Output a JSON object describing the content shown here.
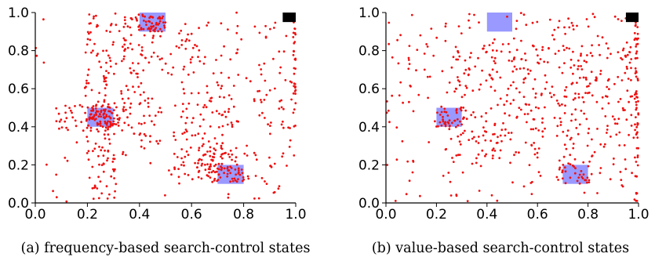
{
  "chart_data": [
    {
      "type": "scatter",
      "caption": "(a) frequency-based search-control states",
      "xlim": [
        0,
        1
      ],
      "ylim": [
        0,
        1
      ],
      "x_ticks": [
        "0.0",
        "0.2",
        "0.4",
        "0.6",
        "0.8",
        "1.0"
      ],
      "y_ticks": [
        "0.0",
        "0.2",
        "0.4",
        "0.6",
        "0.8",
        "1.0"
      ],
      "point_color": "#ee1111",
      "regions": [
        {
          "x": [
            0.4,
            0.5
          ],
          "y": [
            0.9,
            1.0
          ],
          "color": "#7f7fff"
        },
        {
          "x": [
            0.2,
            0.3
          ],
          "y": [
            0.4,
            0.5
          ],
          "color": "#7f7fff"
        },
        {
          "x": [
            0.7,
            0.8
          ],
          "y": [
            0.1,
            0.2
          ],
          "color": "#7f7fff"
        }
      ],
      "goal": {
        "x": [
          0.95,
          1.0
        ],
        "y": [
          0.95,
          1.0
        ],
        "color": "#000000"
      },
      "clusters": [
        {
          "n": 140,
          "cx": [
            0.19,
            0.31
          ],
          "cy": [
            0.02,
            1.0
          ]
        },
        {
          "n": 120,
          "cx": [
            0.33,
            0.49
          ],
          "cy": [
            0.25,
            0.98
          ]
        },
        {
          "n": 70,
          "cx": [
            0.08,
            0.34
          ],
          "cy": [
            0.38,
            0.52
          ]
        },
        {
          "n": 35,
          "cx": [
            0.21,
            0.29
          ],
          "cy": [
            0.41,
            0.49
          ]
        },
        {
          "n": 40,
          "cx": [
            0.39,
            0.5
          ],
          "cy": [
            0.9,
            0.99
          ]
        },
        {
          "n": 150,
          "cx": [
            0.52,
            0.78
          ],
          "cy": [
            0.12,
            0.95
          ]
        },
        {
          "n": 60,
          "cx": [
            0.62,
            0.82
          ],
          "cy": [
            0.12,
            0.32
          ]
        },
        {
          "n": 40,
          "cx": [
            0.66,
            0.81
          ],
          "cy": [
            0.11,
            0.21
          ]
        },
        {
          "n": 70,
          "cx": [
            0.84,
            1.0
          ],
          "cy": [
            0.0,
            0.95
          ]
        },
        {
          "n": 30,
          "cx": [
            0.99,
            1.0
          ],
          "cy": [
            0.4,
            0.95
          ]
        },
        {
          "n": 60,
          "cx": [
            0.0,
            1.0
          ],
          "cy": [
            0.0,
            1.0
          ]
        }
      ]
    },
    {
      "type": "scatter",
      "caption": "(b) value-based search-control states",
      "xlim": [
        0,
        1
      ],
      "ylim": [
        0,
        1
      ],
      "x_ticks": [
        "0.0",
        "0.2",
        "0.4",
        "0.6",
        "0.8",
        "1.0"
      ],
      "y_ticks": [
        "0.0",
        "0.2",
        "0.4",
        "0.6",
        "0.8",
        "1.0"
      ],
      "point_color": "#ee1111",
      "regions": [
        {
          "x": [
            0.4,
            0.5
          ],
          "y": [
            0.9,
            1.0
          ],
          "color": "#7f7fff"
        },
        {
          "x": [
            0.2,
            0.3
          ],
          "y": [
            0.4,
            0.5
          ],
          "color": "#7f7fff"
        },
        {
          "x": [
            0.7,
            0.8
          ],
          "y": [
            0.1,
            0.2
          ],
          "color": "#7f7fff"
        }
      ],
      "goal": {
        "x": [
          0.95,
          1.0
        ],
        "y": [
          0.95,
          1.0
        ],
        "color": "#000000"
      },
      "clusters": [
        {
          "n": 260,
          "cx": [
            0.0,
            1.0
          ],
          "cy": [
            0.0,
            1.0
          ]
        },
        {
          "n": 260,
          "cx": [
            0.25,
            1.0
          ],
          "cy": [
            0.2,
            0.85
          ]
        },
        {
          "n": 35,
          "cx": [
            0.19,
            0.31
          ],
          "cy": [
            0.4,
            0.5
          ]
        },
        {
          "n": 30,
          "cx": [
            0.68,
            0.82
          ],
          "cy": [
            0.1,
            0.22
          ]
        },
        {
          "n": 60,
          "cx": [
            0.985,
            1.0
          ],
          "cy": [
            0.0,
            0.95
          ]
        },
        {
          "n": 40,
          "cx": [
            0.55,
            1.0
          ],
          "cy": [
            0.5,
            0.98
          ]
        }
      ]
    }
  ]
}
